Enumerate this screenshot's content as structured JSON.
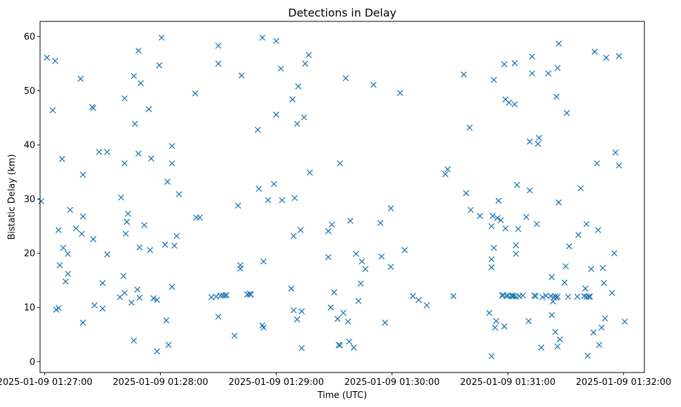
{
  "chart_data": {
    "type": "scatter",
    "title": "Detections in Delay",
    "xlabel": "Time (UTC)",
    "ylabel": "Bistatic Delay (km)",
    "marker": "x",
    "color": "#1f77b4",
    "x_unit": "minutes since 2025-01-09 01:27:00",
    "xlim": [
      -0.04,
      5.18
    ],
    "ylim": [
      -2.0,
      62.8
    ],
    "x_ticks": [
      {
        "value": 0,
        "label": "2025-01-09 01:27:00"
      },
      {
        "value": 1,
        "label": "2025-01-09 01:28:00"
      },
      {
        "value": 2,
        "label": "2025-01-09 01:29:00"
      },
      {
        "value": 3,
        "label": "2025-01-09 01:30:00"
      },
      {
        "value": 4,
        "label": "2025-01-09 01:31:00"
      },
      {
        "value": 5,
        "label": "2025-01-09 01:32:00"
      }
    ],
    "y_ticks": [
      {
        "value": 0,
        "label": "0"
      },
      {
        "value": 10,
        "label": "10"
      },
      {
        "value": 20,
        "label": "20"
      },
      {
        "value": 30,
        "label": "30"
      },
      {
        "value": 40,
        "label": "40"
      },
      {
        "value": 50,
        "label": "50"
      },
      {
        "value": 60,
        "label": "60"
      }
    ],
    "points": [
      [
        -0.03,
        29.6
      ],
      [
        0.02,
        56.1
      ],
      [
        0.07,
        46.4
      ],
      [
        0.09,
        55.5
      ],
      [
        0.1,
        9.6
      ],
      [
        0.12,
        9.9
      ],
      [
        0.12,
        24.3
      ],
      [
        0.13,
        17.8
      ],
      [
        0.15,
        37.4
      ],
      [
        0.16,
        21
      ],
      [
        0.18,
        14.8
      ],
      [
        0.2,
        16.2
      ],
      [
        0.2,
        19.9
      ],
      [
        0.22,
        28
      ],
      [
        0.27,
        24.6
      ],
      [
        0.31,
        52.2
      ],
      [
        0.32,
        23.6
      ],
      [
        0.33,
        34.5
      ],
      [
        0.33,
        26.8
      ],
      [
        0.33,
        7.2
      ],
      [
        0.41,
        47
      ],
      [
        0.42,
        22.6
      ],
      [
        0.42,
        46.8
      ],
      [
        0.43,
        10.4
      ],
      [
        0.47,
        38.7
      ],
      [
        0.5,
        14.5
      ],
      [
        0.5,
        9.8
      ],
      [
        0.54,
        19.8
      ],
      [
        0.54,
        38.7
      ],
      [
        0.65,
        11.9
      ],
      [
        0.66,
        30.3
      ],
      [
        0.68,
        15.8
      ],
      [
        0.69,
        12.7
      ],
      [
        0.69,
        36.6
      ],
      [
        0.69,
        48.6
      ],
      [
        0.7,
        23.6
      ],
      [
        0.72,
        27.3
      ],
      [
        0.71,
        25.8
      ],
      [
        0.75,
        10.9
      ],
      [
        0.77,
        52.7
      ],
      [
        0.77,
        3.9
      ],
      [
        0.78,
        43.9
      ],
      [
        0.8,
        13.3
      ],
      [
        0.81,
        57.4
      ],
      [
        0.81,
        38.4
      ],
      [
        0.82,
        21.1
      ],
      [
        0.82,
        11.8
      ],
      [
        0.83,
        51.4
      ],
      [
        0.86,
        25.2
      ],
      [
        0.9,
        46.6
      ],
      [
        0.91,
        20.6
      ],
      [
        0.92,
        37.5
      ],
      [
        0.94,
        11.7
      ],
      [
        0.97,
        11.4
      ],
      [
        0.97,
        1.9
      ],
      [
        0.99,
        54.7
      ],
      [
        1.01,
        59.8
      ],
      [
        1.04,
        21.6
      ],
      [
        1.05,
        7.6
      ],
      [
        1.06,
        33.2
      ],
      [
        1.07,
        3.1
      ],
      [
        1.1,
        39.8
      ],
      [
        1.1,
        13.8
      ],
      [
        1.1,
        36.6
      ],
      [
        1.12,
        21.4
      ],
      [
        1.14,
        23.2
      ],
      [
        1.16,
        30.9
      ],
      [
        1.3,
        49.5
      ],
      [
        1.31,
        26.6
      ],
      [
        1.34,
        26.6
      ],
      [
        1.44,
        11.9
      ],
      [
        1.48,
        12
      ],
      [
        1.5,
        58.3
      ],
      [
        1.5,
        55
      ],
      [
        1.5,
        8.3
      ],
      [
        1.52,
        12.2
      ],
      [
        1.54,
        12.2
      ],
      [
        1.56,
        12.2
      ],
      [
        1.57,
        12.3
      ],
      [
        1.64,
        4.8
      ],
      [
        1.67,
        28.8
      ],
      [
        1.69,
        17.2
      ],
      [
        1.69,
        17.8
      ],
      [
        1.7,
        52.8
      ],
      [
        1.75,
        12.4
      ],
      [
        1.77,
        12.5
      ],
      [
        1.78,
        12.4
      ],
      [
        1.84,
        42.8
      ],
      [
        1.85,
        31.9
      ],
      [
        1.88,
        6.7
      ],
      [
        1.88,
        59.8
      ],
      [
        1.89,
        6.3
      ],
      [
        1.89,
        18.5
      ],
      [
        1.93,
        29.8
      ],
      [
        1.98,
        32.8
      ],
      [
        2,
        59.2
      ],
      [
        2,
        45.6
      ],
      [
        2.04,
        54.1
      ],
      [
        2.05,
        29.8
      ],
      [
        2.13,
        13.5
      ],
      [
        2.14,
        48.4
      ],
      [
        2.15,
        23.2
      ],
      [
        2.15,
        9.5
      ],
      [
        2.16,
        30.2
      ],
      [
        2.18,
        43.9
      ],
      [
        2.18,
        7.8
      ],
      [
        2.19,
        50.8
      ],
      [
        2.21,
        24.3
      ],
      [
        2.22,
        9.3
      ],
      [
        2.22,
        2.5
      ],
      [
        2.24,
        45.1
      ],
      [
        2.25,
        55
      ],
      [
        2.28,
        56.6
      ],
      [
        2.29,
        34.9
      ],
      [
        2.45,
        24.1
      ],
      [
        2.45,
        19.3
      ],
      [
        2.47,
        10
      ],
      [
        2.48,
        25.3
      ],
      [
        2.5,
        12.8
      ],
      [
        2.53,
        7.9
      ],
      [
        2.54,
        3.1
      ],
      [
        2.55,
        36.6
      ],
      [
        2.55,
        3
      ],
      [
        2.58,
        9
      ],
      [
        2.6,
        52.3
      ],
      [
        2.62,
        7.4
      ],
      [
        2.63,
        3.7
      ],
      [
        2.64,
        26
      ],
      [
        2.67,
        2.6
      ],
      [
        2.69,
        19.9
      ],
      [
        2.71,
        11.2
      ],
      [
        2.73,
        14.4
      ],
      [
        2.74,
        18.5
      ],
      [
        2.77,
        17.1
      ],
      [
        2.84,
        51.1
      ],
      [
        2.9,
        25.6
      ],
      [
        2.91,
        19.4
      ],
      [
        2.94,
        7.2
      ],
      [
        2.99,
        17.5
      ],
      [
        2.99,
        28.3
      ],
      [
        3.07,
        49.6
      ],
      [
        3.11,
        20.6
      ],
      [
        3.18,
        12.1
      ],
      [
        3.23,
        11.4
      ],
      [
        3.3,
        10.4
      ],
      [
        3.46,
        34.6
      ],
      [
        3.48,
        35.5
      ],
      [
        3.53,
        12.1
      ],
      [
        3.62,
        53
      ],
      [
        3.64,
        31.1
      ],
      [
        3.67,
        43.2
      ],
      [
        3.68,
        28
      ],
      [
        3.76,
        26.9
      ],
      [
        3.84,
        9
      ],
      [
        3.86,
        1
      ],
      [
        3.86,
        18.9
      ],
      [
        3.86,
        17.4
      ],
      [
        3.86,
        25
      ],
      [
        3.87,
        26.9
      ],
      [
        3.88,
        52
      ],
      [
        3.88,
        21
      ],
      [
        3.89,
        6.3
      ],
      [
        3.9,
        7.5
      ],
      [
        3.91,
        26.5
      ],
      [
        3.92,
        29.7
      ],
      [
        3.94,
        26.1
      ],
      [
        3.95,
        12.2
      ],
      [
        3.96,
        12.3
      ],
      [
        3.97,
        6.5
      ],
      [
        3.97,
        54.9
      ],
      [
        3.98,
        24.6
      ],
      [
        3.98,
        48.4
      ],
      [
        3.99,
        12.1
      ],
      [
        4,
        12.2
      ],
      [
        4.01,
        47.8
      ],
      [
        4.03,
        12.2
      ],
      [
        4.04,
        12.1
      ],
      [
        4.05,
        12.1
      ],
      [
        4.06,
        55.1
      ],
      [
        4.06,
        47.5
      ],
      [
        4.07,
        12
      ],
      [
        4.07,
        21.5
      ],
      [
        4.07,
        19.9
      ],
      [
        4.08,
        32.6
      ],
      [
        4.09,
        24.5
      ],
      [
        4.1,
        12.1
      ],
      [
        4.13,
        12.2
      ],
      [
        4.16,
        26.7
      ],
      [
        4.18,
        7.5
      ],
      [
        4.19,
        40.6
      ],
      [
        4.19,
        31.6
      ],
      [
        4.21,
        56.3
      ],
      [
        4.21,
        53.2
      ],
      [
        4.23,
        12.2
      ],
      [
        4.24,
        12.1
      ],
      [
        4.25,
        25.4
      ],
      [
        4.26,
        40.2
      ],
      [
        4.27,
        41.3
      ],
      [
        4.29,
        2.6
      ],
      [
        4.3,
        11.9
      ],
      [
        4.33,
        12.2
      ],
      [
        4.35,
        53.2
      ],
      [
        4.37,
        12.1
      ],
      [
        4.38,
        8.6
      ],
      [
        4.38,
        15.6
      ],
      [
        4.39,
        11.1
      ],
      [
        4.4,
        11.8
      ],
      [
        4.41,
        5.5
      ],
      [
        4.41,
        12.1
      ],
      [
        4.42,
        48.9
      ],
      [
        4.42,
        11.8
      ],
      [
        4.43,
        12
      ],
      [
        4.43,
        2.8
      ],
      [
        4.43,
        54.2
      ],
      [
        4.44,
        58.7
      ],
      [
        4.44,
        29.4
      ],
      [
        4.45,
        4.1
      ],
      [
        4.49,
        14.6
      ],
      [
        4.5,
        17.6
      ],
      [
        4.51,
        45.9
      ],
      [
        4.52,
        12
      ],
      [
        4.53,
        21.3
      ],
      [
        4.6,
        12
      ],
      [
        4.61,
        23.4
      ],
      [
        4.63,
        32
      ],
      [
        4.66,
        12.1
      ],
      [
        4.67,
        13.5
      ],
      [
        4.68,
        25.4
      ],
      [
        4.68,
        12
      ],
      [
        4.69,
        1.1
      ],
      [
        4.7,
        12
      ],
      [
        4.71,
        12
      ],
      [
        4.72,
        17.1
      ],
      [
        4.74,
        5.4
      ],
      [
        4.75,
        57.2
      ],
      [
        4.77,
        36.6
      ],
      [
        4.78,
        24.3
      ],
      [
        4.79,
        3.1
      ],
      [
        4.81,
        6.3
      ],
      [
        4.82,
        17.3
      ],
      [
        4.83,
        14.5
      ],
      [
        4.84,
        8
      ],
      [
        4.85,
        56.1
      ],
      [
        4.9,
        12.7
      ],
      [
        4.92,
        20
      ],
      [
        4.93,
        38.6
      ],
      [
        4.96,
        36.2
      ],
      [
        4.96,
        56.4
      ],
      [
        5.01,
        7.4
      ]
    ]
  }
}
